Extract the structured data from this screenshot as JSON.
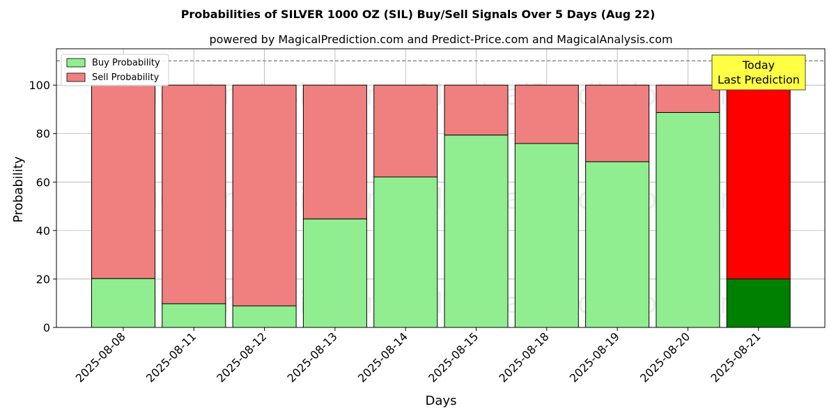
{
  "chart_data": {
    "type": "bar",
    "stacked": true,
    "title": "Probabilities of SILVER 1000 OZ (SIL) Buy/Sell Signals Over 5 Days (Aug 22)",
    "subtitle": "powered by MagicalPrediction.com and Predict-Price.com and MagicalAnalysis.com",
    "xlabel": "Days",
    "ylabel": "Probability",
    "ylim": [
      0,
      115
    ],
    "yticks": [
      0,
      20,
      40,
      60,
      80,
      100
    ],
    "grid": true,
    "legend_position": "top-left",
    "reference_line": 110,
    "categories": [
      "2025-08-08",
      "2025-08-11",
      "2025-08-12",
      "2025-08-13",
      "2025-08-14",
      "2025-08-15",
      "2025-08-18",
      "2025-08-19",
      "2025-08-20",
      "2025-08-21"
    ],
    "series": [
      {
        "name": "Buy Probability",
        "values": [
          20.2,
          9.8,
          8.9,
          44.8,
          62.1,
          79.4,
          75.9,
          68.4,
          88.7,
          20.0
        ],
        "color": "#90ee90",
        "highlight_color": "#008000"
      },
      {
        "name": "Sell Probability",
        "values": [
          79.8,
          90.2,
          91.1,
          55.2,
          37.9,
          20.6,
          24.1,
          31.6,
          11.3,
          80.0
        ],
        "color": "#f08080",
        "highlight_color": "#ff0000"
      }
    ],
    "highlight_index": 9,
    "annotation": {
      "line1": "Today",
      "line2": "Last Prediction",
      "background": "#ffff44"
    },
    "watermarks": [
      "MagicalAnalysis.com",
      "MagicalPrediction.com"
    ]
  }
}
